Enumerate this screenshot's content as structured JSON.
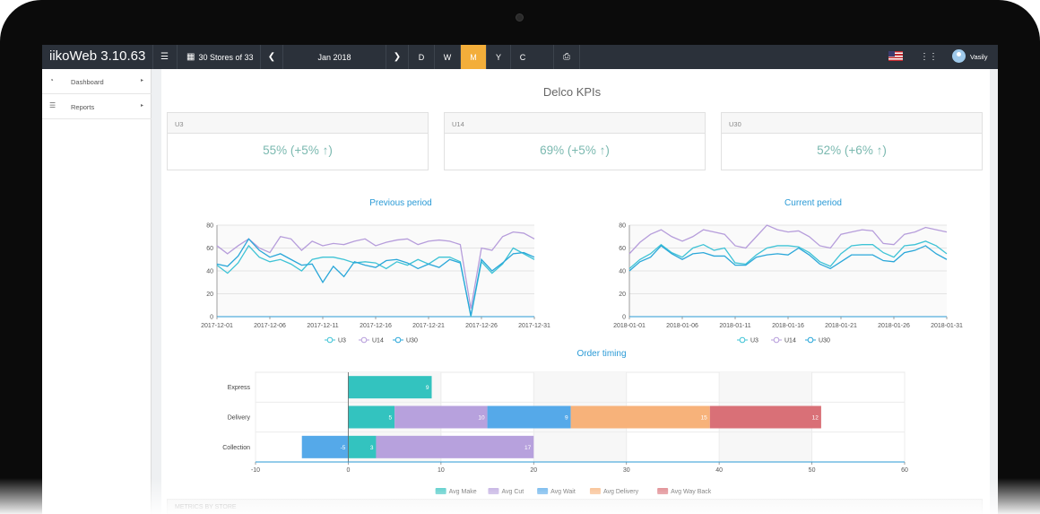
{
  "app": {
    "title": "iikoWeb 3.10.63"
  },
  "toolbar": {
    "menu_icon": "hamburger-icon",
    "stores_label": "30 Stores of 33",
    "period_label": "Jan 2018",
    "periods": [
      "D",
      "W",
      "M",
      "Y",
      "C"
    ],
    "active_period": "M",
    "print_icon": "print-icon",
    "apps_icon": "grid-icon",
    "user_name": "Vasily"
  },
  "sidebar": {
    "items": [
      {
        "label": "Dashboard",
        "icon": "dashboard-icon"
      },
      {
        "label": "Reports",
        "icon": "list-icon"
      }
    ]
  },
  "page": {
    "title": "Delco KPIs",
    "kpis": [
      {
        "label": "U3",
        "value": "55% (+5% ↑)"
      },
      {
        "label": "U14",
        "value": "69% (+5% ↑)"
      },
      {
        "label": "U30",
        "value": "52% (+6% ↑)"
      }
    ],
    "metrics_section": "METRICS BY STORE"
  },
  "colors": {
    "accent": "#f3ae3a",
    "navbar": "#2b313a",
    "kpi_value": "#7bb9b0",
    "chart_title": "#2a9ad6"
  },
  "chart_data": [
    {
      "type": "line",
      "title": "Previous period",
      "x_start": "2017-12-01",
      "x_end": "2017-12-31",
      "x_ticks": [
        "2017-12-01",
        "2017-12-06",
        "2017-12-11",
        "2017-12-16",
        "2017-12-21",
        "2017-12-26",
        "2017-12-31"
      ],
      "ylim": [
        0,
        80
      ],
      "y_ticks": [
        "0",
        "20",
        "40",
        "60",
        "80"
      ],
      "series": [
        {
          "name": "U3",
          "color": "#3fc3d6",
          "values": [
            45,
            38,
            47,
            62,
            52,
            48,
            50,
            46,
            40,
            50,
            52,
            52,
            50,
            47,
            48,
            47,
            42,
            48,
            45,
            50,
            46,
            52,
            52,
            48,
            0,
            48,
            38,
            46,
            60,
            55,
            50
          ]
        },
        {
          "name": "U14",
          "color": "#b69ddb",
          "values": [
            62,
            55,
            62,
            68,
            60,
            56,
            70,
            68,
            58,
            66,
            62,
            64,
            63,
            66,
            68,
            62,
            65,
            67,
            68,
            63,
            66,
            67,
            66,
            63,
            7,
            60,
            58,
            70,
            74,
            73,
            68
          ]
        },
        {
          "name": "U30",
          "color": "#2aa7d9",
          "values": [
            46,
            44,
            53,
            68,
            58,
            52,
            55,
            50,
            45,
            46,
            30,
            44,
            35,
            48,
            45,
            43,
            49,
            50,
            47,
            42,
            46,
            43,
            50,
            47,
            1,
            50,
            40,
            47,
            55,
            56,
            52
          ]
        }
      ]
    },
    {
      "type": "line",
      "title": "Current period",
      "x_start": "2018-01-01",
      "x_end": "2018-01-31",
      "x_ticks": [
        "2018-01-01",
        "2018-01-06",
        "2018-01-11",
        "2018-01-16",
        "2018-01-21",
        "2018-01-26",
        "2018-01-31"
      ],
      "ylim": [
        0,
        80
      ],
      "y_ticks": [
        "0",
        "20",
        "40",
        "60",
        "80"
      ],
      "series": [
        {
          "name": "U3",
          "color": "#3fc3d6",
          "values": [
            42,
            50,
            55,
            63,
            56,
            52,
            60,
            63,
            58,
            60,
            47,
            46,
            54,
            60,
            62,
            62,
            61,
            56,
            48,
            44,
            55,
            62,
            63,
            63,
            56,
            52,
            62,
            63,
            66,
            62,
            55
          ]
        },
        {
          "name": "U14",
          "color": "#b69ddb",
          "values": [
            55,
            65,
            72,
            76,
            70,
            66,
            70,
            76,
            74,
            72,
            62,
            60,
            70,
            80,
            76,
            74,
            75,
            70,
            62,
            60,
            72,
            74,
            76,
            75,
            64,
            63,
            72,
            74,
            78,
            76,
            74
          ]
        },
        {
          "name": "U30",
          "color": "#2aa7d9",
          "values": [
            40,
            48,
            52,
            62,
            55,
            50,
            55,
            56,
            53,
            53,
            45,
            45,
            52,
            54,
            55,
            54,
            60,
            54,
            46,
            42,
            48,
            54,
            54,
            54,
            49,
            48,
            56,
            58,
            62,
            55,
            50
          ]
        }
      ]
    },
    {
      "type": "bar",
      "orientation": "horizontal",
      "stacked": true,
      "title": "Order timing",
      "categories": [
        "Express",
        "Delivery",
        "Collection"
      ],
      "xlim": [
        -10,
        60
      ],
      "x_ticks": [
        "-10",
        "0",
        "10",
        "20",
        "30",
        "40",
        "50",
        "60"
      ],
      "legend_position": "bottom",
      "series": [
        {
          "name": "Avg Make",
          "color": "#33c3bf",
          "values": [
            9,
            5,
            3
          ]
        },
        {
          "name": "Avg Cut",
          "color": "#b7a1dd",
          "values": [
            0,
            10,
            17
          ]
        },
        {
          "name": "Avg Wait",
          "color": "#55a9e9",
          "values": [
            0,
            9,
            -5
          ]
        },
        {
          "name": "Avg Delivery",
          "color": "#f7b27a",
          "values": [
            0,
            15,
            0
          ]
        },
        {
          "name": "Avg Way Back",
          "color": "#d97077",
          "values": [
            0,
            12,
            0
          ]
        }
      ]
    }
  ]
}
